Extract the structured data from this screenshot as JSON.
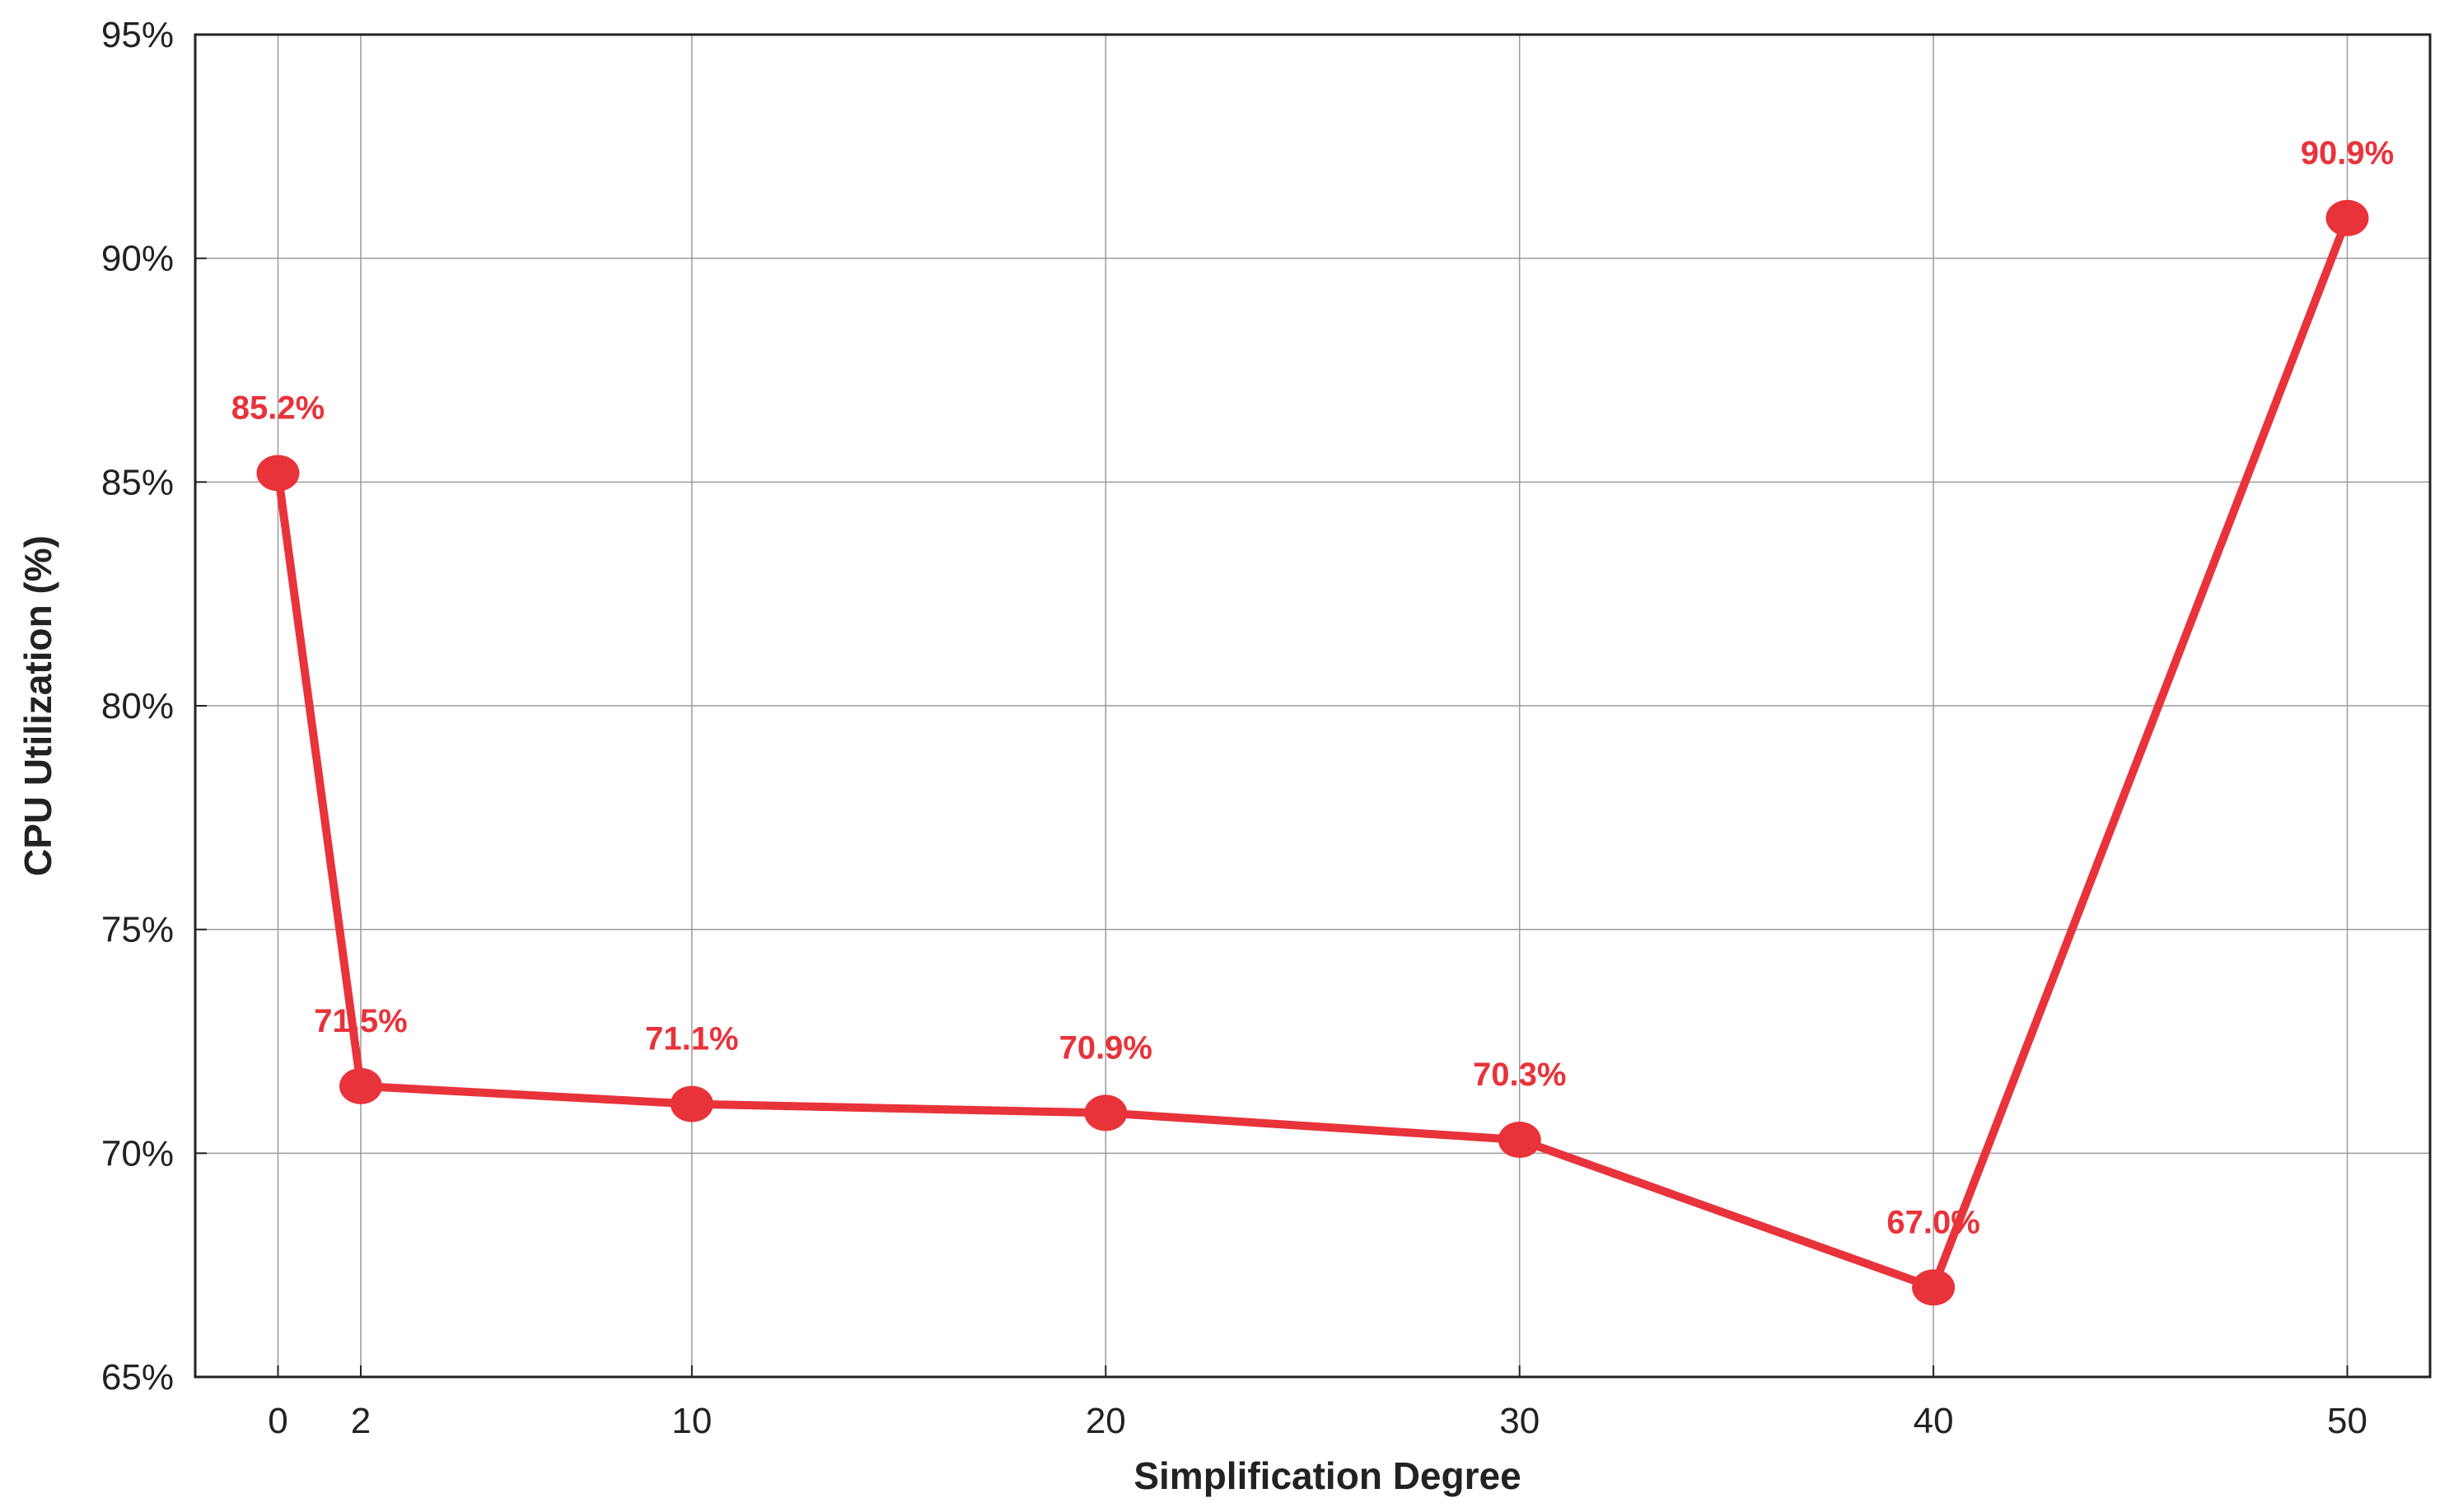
{
  "chart_data": {
    "type": "line",
    "xlabel": "Simplification Degree",
    "ylabel": "CPU Utilization (%)",
    "x": [
      0,
      2,
      10,
      20,
      30,
      40,
      50
    ],
    "x_ticks": [
      "0",
      "2",
      "10",
      "20",
      "30",
      "40",
      "50"
    ],
    "y_ticks": [
      "65%",
      "70%",
      "75%",
      "80%",
      "85%",
      "90%",
      "95%"
    ],
    "xlim": [
      -2,
      52
    ],
    "ylim": [
      65,
      95
    ],
    "grid": true,
    "series": [
      {
        "values": [
          85.2,
          71.5,
          71.1,
          70.9,
          70.3,
          67.0,
          90.9
        ],
        "labels": [
          "85.2%",
          "71.5%",
          "71.1%",
          "70.9%",
          "70.3%",
          "67.0%",
          "90.9%"
        ],
        "color": "#e8333a",
        "marker": "circle"
      }
    ]
  }
}
